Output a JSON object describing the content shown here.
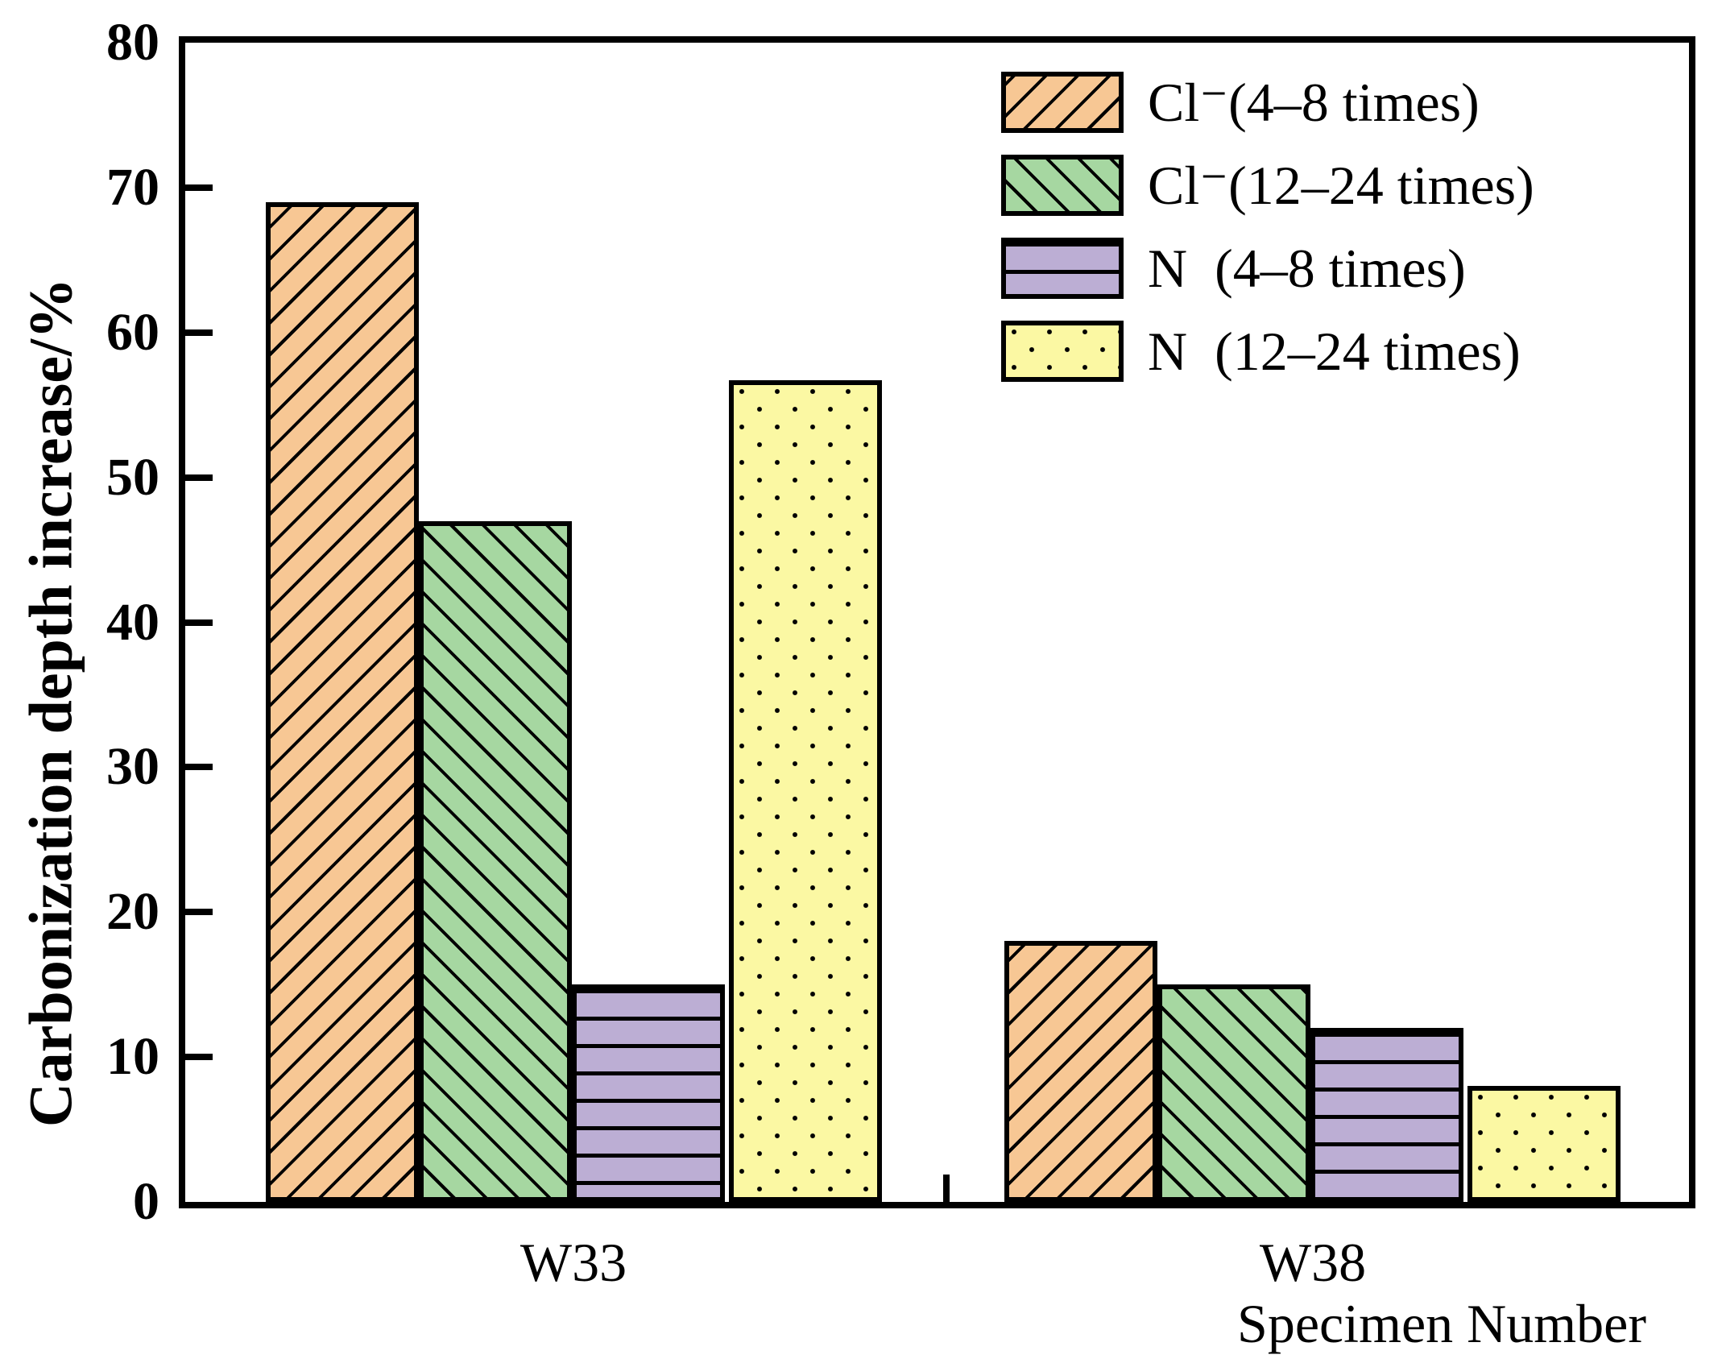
{
  "figure": {
    "background": "#FFFFFF",
    "text_color": "#000000",
    "axis_color": "#000000"
  },
  "chart_data": {
    "type": "bar",
    "title": "",
    "xlabel": "Specimen Number",
    "ylabel": "Carbonization depth increase/%",
    "categories": [
      "W33",
      "W38"
    ],
    "series": [
      {
        "name": "Cl⁻(4–8 times)",
        "hatch": "diagonal-forward",
        "color": "#F7C794",
        "values": [
          69,
          18
        ]
      },
      {
        "name": "Cl⁻(12–24 times)",
        "hatch": "diagonal-backward",
        "color": "#A6D7A1",
        "values": [
          47,
          15
        ]
      },
      {
        "name": "N  (4–8 times)",
        "hatch": "horizontal-lines",
        "color": "#BCAED4",
        "values": [
          15,
          12
        ]
      },
      {
        "name": "N  (12–24 times)",
        "hatch": "dots",
        "color": "#FBF8A3",
        "values": [
          56.7,
          8
        ]
      }
    ],
    "ylim": [
      0,
      80
    ],
    "yticks": [
      0,
      10,
      20,
      30,
      40,
      50,
      60,
      70,
      80
    ],
    "grid": false,
    "legend_position": "top-right",
    "bar_edge_color": "#000000"
  }
}
